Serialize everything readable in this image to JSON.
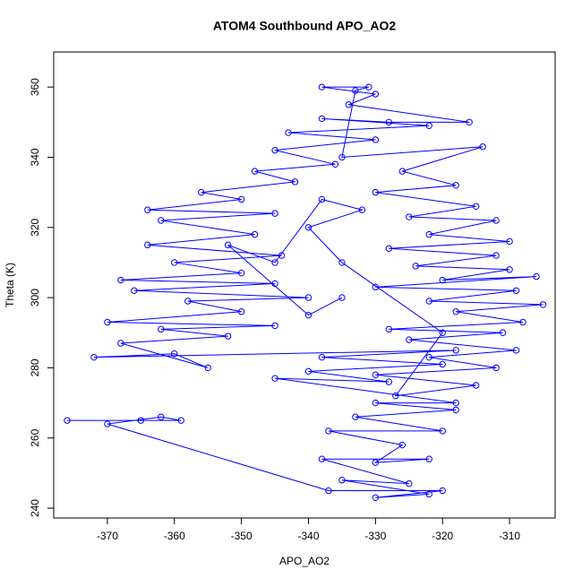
{
  "chart_data": {
    "type": "line",
    "marker": "open-circle",
    "title": "ATOM4 Southbound APO_AO2",
    "x_label": "APO_AO2",
    "y_label": "Theta (K)",
    "color": "#0000ff",
    "x": [
      -376,
      -365,
      -359,
      -362,
      -370,
      -337,
      -320,
      -330,
      -322,
      -335,
      -325,
      -338,
      -322,
      -330,
      -326,
      -337,
      -320,
      -333,
      -318,
      -330,
      -318,
      -345,
      -328,
      -340,
      -320,
      -338,
      -318,
      -372,
      -360,
      -355,
      -368,
      -352,
      -362,
      -345,
      -370,
      -350,
      -358,
      -340,
      -366,
      -345,
      -368,
      -350,
      -360,
      -344,
      -364,
      -348,
      -362,
      -345,
      -364,
      -350,
      -356,
      -342,
      -348,
      -336,
      -345,
      -330,
      -343,
      -322,
      -338,
      -328,
      -316,
      -334,
      -330,
      -338,
      -331,
      -333,
      -335,
      -314,
      -326,
      -318,
      -330,
      -315,
      -325,
      -312,
      -322,
      -310,
      -328,
      -312,
      -324,
      -310,
      -320,
      -306,
      -330,
      -309,
      -322,
      -305,
      -318,
      -308,
      -328,
      -311,
      -325,
      -309,
      -322,
      -312,
      -330,
      -315,
      -327,
      -320,
      -335,
      -340,
      -332,
      -338,
      -345,
      -352,
      -340,
      -335
    ],
    "values": [
      265,
      265,
      265,
      266,
      264,
      245,
      245,
      243,
      244,
      248,
      247,
      254,
      254,
      253,
      258,
      262,
      262,
      266,
      268,
      270,
      270,
      277,
      276,
      279,
      281,
      283,
      285,
      283,
      284,
      280,
      287,
      289,
      291,
      292,
      293,
      296,
      299,
      300,
      302,
      304,
      305,
      307,
      310,
      312,
      315,
      318,
      322,
      324,
      325,
      328,
      330,
      333,
      336,
      338,
      342,
      345,
      347,
      349,
      351,
      350,
      350,
      355,
      358,
      360,
      360,
      359,
      340,
      343,
      336,
      332,
      330,
      326,
      323,
      322,
      318,
      316,
      314,
      312,
      309,
      308,
      305,
      306,
      303,
      302,
      299,
      298,
      296,
      293,
      291,
      290,
      288,
      285,
      283,
      280,
      278,
      275,
      272,
      290,
      310,
      320,
      325,
      328,
      310,
      315,
      295,
      300
    ],
    "xlim": [
      -378,
      -303.2
    ],
    "ylim": [
      237.2,
      370
    ],
    "xticks": [
      -370,
      -360,
      -350,
      -340,
      -330,
      -320,
      -310
    ],
    "yticks": [
      240,
      260,
      280,
      300,
      320,
      340,
      360
    ]
  }
}
